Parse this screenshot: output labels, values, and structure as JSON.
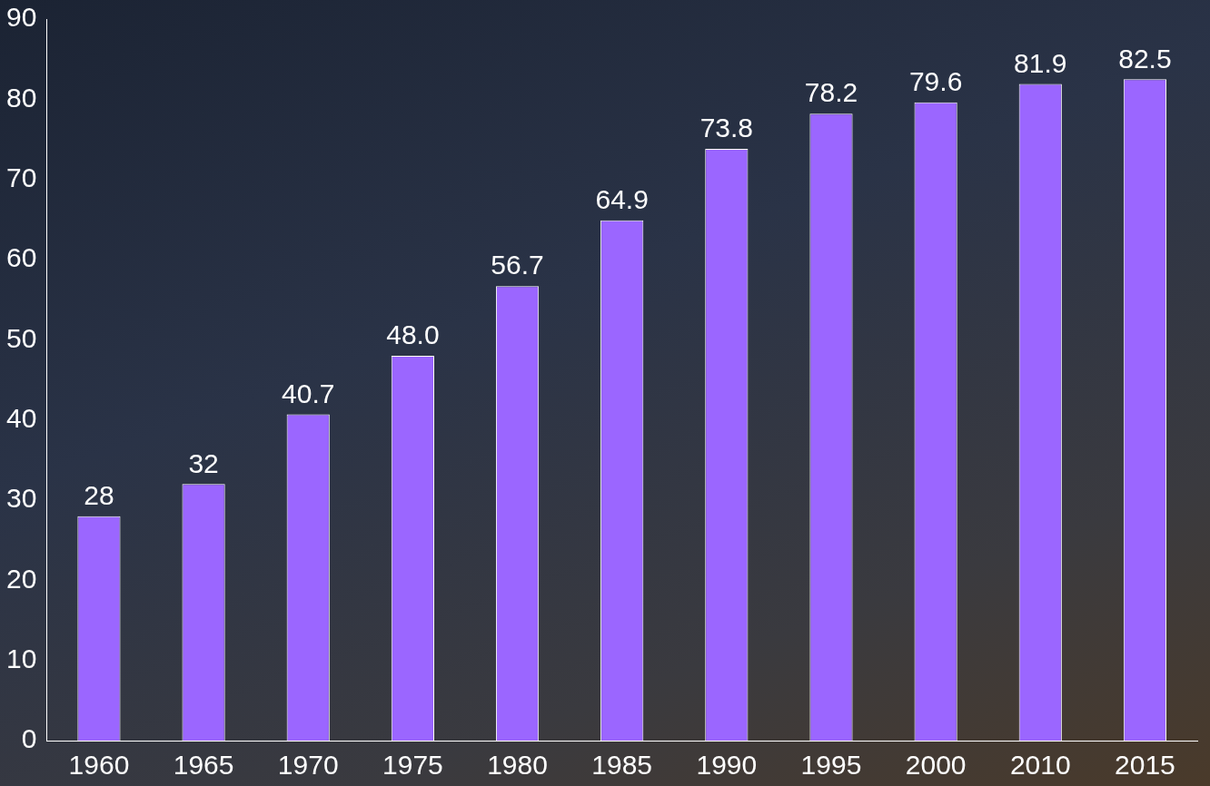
{
  "chart_data": {
    "type": "bar",
    "categories": [
      "1960",
      "1965",
      "1970",
      "1975",
      "1980",
      "1985",
      "1990",
      "1995",
      "2000",
      "2010",
      "2015"
    ],
    "values": [
      28,
      32,
      40.7,
      48.0,
      56.7,
      64.9,
      73.8,
      78.2,
      79.6,
      81.9,
      82.5
    ],
    "value_labels": [
      "28",
      "32",
      "40.7",
      "48.0",
      "56.7",
      "64.9",
      "73.8",
      "78.2",
      "79.6",
      "81.9",
      "82.5"
    ],
    "color": "#9b66ff",
    "ylim": [
      0,
      90
    ],
    "yticks": [
      0,
      10,
      20,
      30,
      40,
      50,
      60,
      70,
      80,
      90
    ],
    "grid": false,
    "data_labels": true
  }
}
